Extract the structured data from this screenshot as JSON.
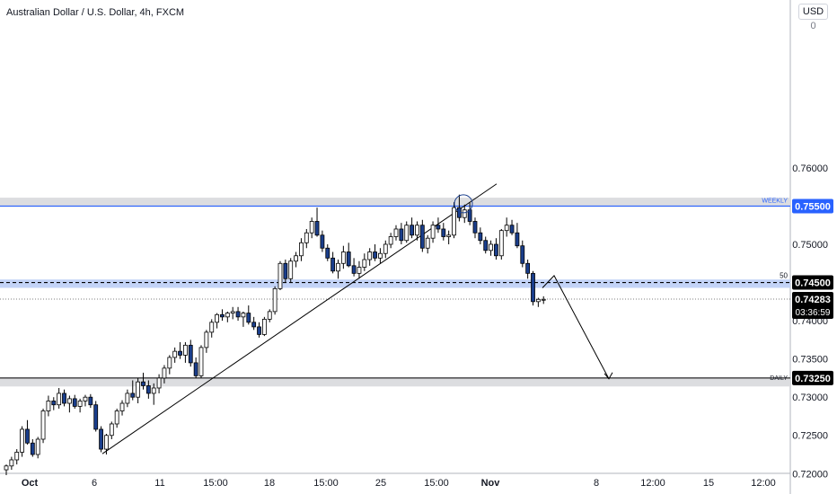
{
  "header": {
    "title": "Australian Dollar / U.S. Dollar, 4h, FXCM",
    "currency": "USD",
    "currency_menu_glyph": "0"
  },
  "colors": {
    "bull": "#ffffff",
    "bear": "#1a3e8c",
    "wick": "#000000",
    "zone": "#c3d3f7",
    "zone_gray": "#dcdde0",
    "weekly_line": "#2962ff",
    "label_black": "#000000",
    "label_blue": "#2962ff"
  },
  "chart_data": {
    "type": "candlestick",
    "symbol": "AUDUSD",
    "timeframe": "4h",
    "y_range": [
      0.7198,
      0.7802
    ],
    "y_ticks": [
      "0.76000",
      "0.75500",
      "0.75000",
      "0.74500",
      "0.74000",
      "0.73500",
      "0.73000",
      "0.72500",
      "0.72000"
    ],
    "x_ticks": [
      "Oct",
      "6",
      "11",
      "15:00",
      "18",
      "15:00",
      "25",
      "15:00",
      "Nov",
      "8",
      "12:00",
      "15",
      "12:00"
    ],
    "levels": [
      {
        "label": "WEEKLY",
        "price": 0.755,
        "price_label": "0.75500",
        "zone": [
          0.7549,
          0.7561
        ]
      },
      {
        "label": "50",
        "price": 0.745,
        "price_label": "0.74500",
        "zone": [
          0.7443,
          0.7454
        ]
      },
      {
        "label": "DAILY",
        "price": 0.7325,
        "price_label": "0.73250",
        "zone": [
          0.7314,
          0.7326
        ]
      }
    ],
    "last_price": {
      "value": 0.74283,
      "price_label": "0.74283",
      "countdown": "03:36:59"
    },
    "trendline": {
      "from_price": 0.7226,
      "to_price": 0.7579
    },
    "projection": [
      0.7443,
      0.7459,
      0.7324
    ],
    "circle_price": 0.7553,
    "candles": [
      [
        0.7205,
        0.7212,
        0.7198,
        0.721
      ],
      [
        0.721,
        0.7222,
        0.7205,
        0.7218
      ],
      [
        0.7218,
        0.7232,
        0.7212,
        0.7228
      ],
      [
        0.7228,
        0.7262,
        0.7222,
        0.7258
      ],
      [
        0.7258,
        0.727,
        0.7238,
        0.724
      ],
      [
        0.724,
        0.7245,
        0.7222,
        0.7225
      ],
      [
        0.7225,
        0.7248,
        0.722,
        0.7245
      ],
      [
        0.7245,
        0.7285,
        0.724,
        0.7282
      ],
      [
        0.7282,
        0.7302,
        0.7275,
        0.7295
      ],
      [
        0.7295,
        0.73,
        0.7283,
        0.729
      ],
      [
        0.729,
        0.7312,
        0.7285,
        0.7305
      ],
      [
        0.7305,
        0.731,
        0.7288,
        0.7292
      ],
      [
        0.7292,
        0.7302,
        0.728,
        0.7298
      ],
      [
        0.7298,
        0.7303,
        0.7285,
        0.7288
      ],
      [
        0.7288,
        0.7298,
        0.728,
        0.7295
      ],
      [
        0.7295,
        0.7303,
        0.7288,
        0.73
      ],
      [
        0.73,
        0.7304,
        0.7286,
        0.729
      ],
      [
        0.729,
        0.7295,
        0.7255,
        0.7258
      ],
      [
        0.7258,
        0.7262,
        0.7228,
        0.7232
      ],
      [
        0.7232,
        0.7252,
        0.7225,
        0.725
      ],
      [
        0.725,
        0.7268,
        0.7245,
        0.7265
      ],
      [
        0.7265,
        0.7285,
        0.726,
        0.7282
      ],
      [
        0.7282,
        0.7296,
        0.7276,
        0.7292
      ],
      [
        0.7292,
        0.731,
        0.7287,
        0.7305
      ],
      [
        0.7305,
        0.7322,
        0.7296,
        0.73
      ],
      [
        0.73,
        0.7325,
        0.7292,
        0.732
      ],
      [
        0.732,
        0.7332,
        0.731,
        0.7315
      ],
      [
        0.7315,
        0.7322,
        0.7298,
        0.7305
      ],
      [
        0.7305,
        0.7318,
        0.729,
        0.7312
      ],
      [
        0.7312,
        0.733,
        0.7305,
        0.7325
      ],
      [
        0.7325,
        0.7342,
        0.7318,
        0.7338
      ],
      [
        0.7338,
        0.7355,
        0.733,
        0.7352
      ],
      [
        0.7352,
        0.7365,
        0.7345,
        0.736
      ],
      [
        0.736,
        0.7372,
        0.735,
        0.7355
      ],
      [
        0.7355,
        0.7372,
        0.7345,
        0.7368
      ],
      [
        0.7368,
        0.7375,
        0.734,
        0.7345
      ],
      [
        0.7345,
        0.7352,
        0.7325,
        0.7328
      ],
      [
        0.7328,
        0.7368,
        0.7325,
        0.7365
      ],
      [
        0.7365,
        0.7388,
        0.7358,
        0.7385
      ],
      [
        0.7385,
        0.7402,
        0.7378,
        0.7398
      ],
      [
        0.7398,
        0.741,
        0.739,
        0.7408
      ],
      [
        0.7408,
        0.7415,
        0.74,
        0.7405
      ],
      [
        0.7405,
        0.7412,
        0.7398,
        0.741
      ],
      [
        0.741,
        0.7418,
        0.7402,
        0.7412
      ],
      [
        0.7412,
        0.7418,
        0.74,
        0.7405
      ],
      [
        0.7405,
        0.7412,
        0.7392,
        0.741
      ],
      [
        0.741,
        0.742,
        0.7395,
        0.7398
      ],
      [
        0.7398,
        0.7405,
        0.7388,
        0.7392
      ],
      [
        0.7392,
        0.7398,
        0.7378,
        0.7382
      ],
      [
        0.7382,
        0.7405,
        0.738,
        0.7402
      ],
      [
        0.7402,
        0.7415,
        0.7398,
        0.7412
      ],
      [
        0.7412,
        0.7445,
        0.7408,
        0.7442
      ],
      [
        0.7442,
        0.7478,
        0.744,
        0.7475
      ],
      [
        0.7475,
        0.748,
        0.745,
        0.7455
      ],
      [
        0.7455,
        0.7482,
        0.745,
        0.7478
      ],
      [
        0.7478,
        0.749,
        0.747,
        0.7485
      ],
      [
        0.7485,
        0.7508,
        0.7478,
        0.7502
      ],
      [
        0.7502,
        0.752,
        0.7495,
        0.7515
      ],
      [
        0.7515,
        0.7535,
        0.7508,
        0.753
      ],
      [
        0.753,
        0.7548,
        0.751,
        0.7512
      ],
      [
        0.7512,
        0.7518,
        0.749,
        0.7495
      ],
      [
        0.7495,
        0.75,
        0.7478,
        0.7482
      ],
      [
        0.7482,
        0.749,
        0.7462,
        0.7465
      ],
      [
        0.7465,
        0.748,
        0.7455,
        0.7475
      ],
      [
        0.7475,
        0.7498,
        0.7468,
        0.749
      ],
      [
        0.749,
        0.7502,
        0.747,
        0.7472
      ],
      [
        0.7472,
        0.7482,
        0.7458,
        0.7462
      ],
      [
        0.7462,
        0.7478,
        0.7455,
        0.747
      ],
      [
        0.747,
        0.7488,
        0.7465,
        0.748
      ],
      [
        0.748,
        0.7495,
        0.7472,
        0.749
      ],
      [
        0.749,
        0.75,
        0.7478,
        0.7482
      ],
      [
        0.7482,
        0.7495,
        0.7475,
        0.7488
      ],
      [
        0.7488,
        0.7505,
        0.7482,
        0.75
      ],
      [
        0.75,
        0.7515,
        0.7495,
        0.751
      ],
      [
        0.751,
        0.7525,
        0.7505,
        0.752
      ],
      [
        0.752,
        0.7528,
        0.75,
        0.7505
      ],
      [
        0.7505,
        0.753,
        0.7502,
        0.7525
      ],
      [
        0.7525,
        0.7535,
        0.7508,
        0.7512
      ],
      [
        0.7512,
        0.753,
        0.7505,
        0.7525
      ],
      [
        0.7525,
        0.7532,
        0.749,
        0.7495
      ],
      [
        0.7495,
        0.7512,
        0.7488,
        0.7508
      ],
      [
        0.7508,
        0.753,
        0.7502,
        0.7525
      ],
      [
        0.7525,
        0.7535,
        0.7515,
        0.752
      ],
      [
        0.752,
        0.7528,
        0.7505,
        0.751
      ],
      [
        0.751,
        0.7518,
        0.75,
        0.7512
      ],
      [
        0.7512,
        0.7555,
        0.7508,
        0.7548
      ],
      [
        0.7548,
        0.7565,
        0.753,
        0.7535
      ],
      [
        0.7535,
        0.7552,
        0.7528,
        0.7545
      ],
      [
        0.7545,
        0.7555,
        0.7525,
        0.753
      ],
      [
        0.753,
        0.7535,
        0.7508,
        0.7515
      ],
      [
        0.7515,
        0.7522,
        0.75,
        0.7505
      ],
      [
        0.7505,
        0.751,
        0.7488,
        0.7492
      ],
      [
        0.7492,
        0.7505,
        0.7485,
        0.75
      ],
      [
        0.75,
        0.7508,
        0.748,
        0.7485
      ],
      [
        0.7485,
        0.752,
        0.748,
        0.7518
      ],
      [
        0.7518,
        0.7535,
        0.751,
        0.7525
      ],
      [
        0.7525,
        0.7532,
        0.7512,
        0.7515
      ],
      [
        0.7515,
        0.7528,
        0.7495,
        0.7498
      ],
      [
        0.7498,
        0.7505,
        0.747,
        0.7475
      ],
      [
        0.7475,
        0.748,
        0.7455,
        0.7462
      ],
      [
        0.7462,
        0.7465,
        0.742,
        0.7425
      ],
      [
        0.7425,
        0.743,
        0.7418,
        0.7428
      ],
      [
        0.7428,
        0.7432,
        0.7422,
        0.7428
      ]
    ]
  }
}
